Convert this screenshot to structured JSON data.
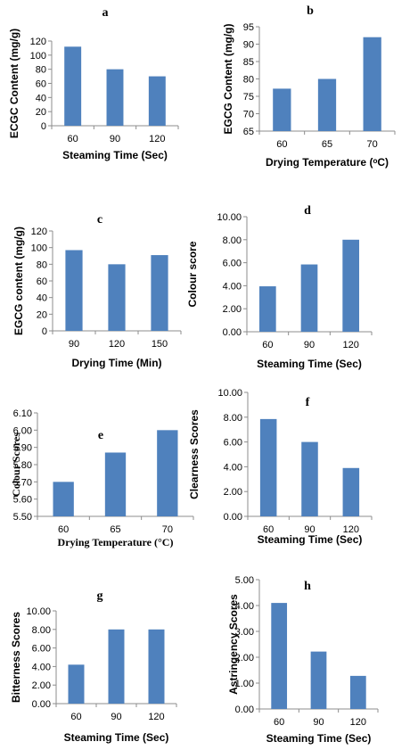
{
  "bar_color": "#4f81bd",
  "chart_data": [
    {
      "type": "bar",
      "title": "a",
      "categories": [
        "60",
        "90",
        "120"
      ],
      "values": [
        112,
        80,
        70
      ],
      "xlabel": "Steaming Time (Sec)",
      "ylabel": "ECGC Content (mg/g)",
      "ylim": [
        0,
        120
      ],
      "yticks": [
        "0",
        "20",
        "40",
        "60",
        "80",
        "100",
        "120"
      ]
    },
    {
      "type": "bar",
      "title": "b",
      "categories": [
        "60",
        "65",
        "70"
      ],
      "values": [
        77.2,
        80,
        92
      ],
      "xlabel": "Drying  Temperature (ᵒC)",
      "ylabel": "EGCG Content (mg/g)",
      "ylim": [
        65,
        95
      ],
      "yticks": [
        "65",
        "70",
        "75",
        "80",
        "85",
        "90",
        "95"
      ]
    },
    {
      "type": "bar",
      "title": "c",
      "categories": [
        "90",
        "120",
        "150"
      ],
      "values": [
        97,
        80,
        91
      ],
      "xlabel": "Drying Time (Min)",
      "ylabel": "EGCG  content (mg/g)",
      "ylim": [
        0,
        120
      ],
      "yticks": [
        "0",
        "20",
        "40",
        "60",
        "80",
        "100",
        "120"
      ]
    },
    {
      "type": "bar",
      "title": "d",
      "categories": [
        "60",
        "90",
        "120"
      ],
      "values": [
        3.95,
        5.85,
        8.0
      ],
      "xlabel": "Steaming Time (Sec)",
      "ylabel": "Colour score",
      "ylim": [
        0,
        10
      ],
      "yticks": [
        "0.00",
        "2.00",
        "4.00",
        "6.00",
        "8.00",
        "10.00"
      ]
    },
    {
      "type": "bar",
      "title": "e",
      "categories": [
        "60",
        "65",
        "70"
      ],
      "values": [
        5.7,
        5.87,
        6.0
      ],
      "xlabel": "Drying  Temperature (°C)",
      "ylabel": "Colour Scores",
      "ylim": [
        5.5,
        6.1
      ],
      "yticks": [
        "5.50",
        "5.60",
        "5.70",
        "5.80",
        "5.90",
        "6.00",
        "6.10"
      ]
    },
    {
      "type": "bar",
      "title": "f",
      "categories": [
        "60",
        "90",
        "120"
      ],
      "values": [
        7.85,
        6.0,
        3.9
      ],
      "xlabel": "Steaming Time (Sec)",
      "ylabel": "Clearness Scores",
      "ylim": [
        0,
        10
      ],
      "yticks": [
        "0.00",
        "2.00",
        "4.00",
        "6.00",
        "8.00",
        "10.00"
      ]
    },
    {
      "type": "bar",
      "title": "g",
      "categories": [
        "60",
        "90",
        "120"
      ],
      "values": [
        4.2,
        8.0,
        8.0
      ],
      "xlabel": "Steaming Time (Sec)",
      "ylabel": "Bitterness Scores",
      "ylim": [
        0,
        10
      ],
      "yticks": [
        "0.00",
        "2.00",
        "4.00",
        "6.00",
        "8.00",
        "10.00"
      ]
    },
    {
      "type": "bar",
      "title": "h",
      "categories": [
        "60",
        "90",
        "120"
      ],
      "values": [
        4.1,
        2.22,
        1.28
      ],
      "xlabel": "Steaming Time (Sec)",
      "ylabel": "Astringency Scores",
      "ylim": [
        0,
        5
      ],
      "yticks": [
        "0.00",
        "1.00",
        "2.00",
        "3.00",
        "4.00",
        "5.00"
      ]
    }
  ]
}
